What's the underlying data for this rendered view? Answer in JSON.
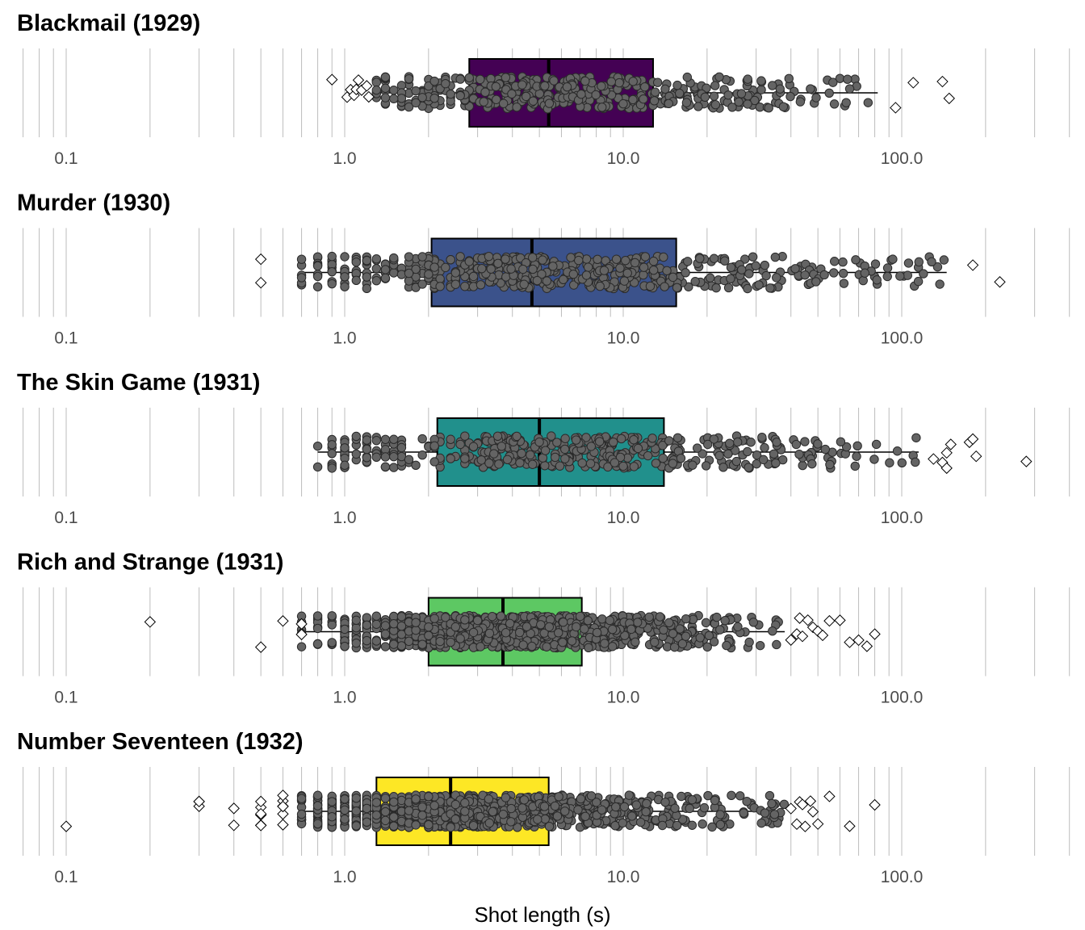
{
  "chart_data": {
    "type": "boxplot",
    "x_scale": "log10",
    "xlim": [
      0.07,
      420
    ],
    "x_ticks": [
      0.1,
      1.0,
      10.0,
      100.0
    ],
    "x_tick_labels": [
      "0.1",
      "1.0",
      "10.0",
      "100.0"
    ],
    "xlabel": "Shot length (s)",
    "grid": "vertical log minor gridlines",
    "point_color": "#646464",
    "panels": [
      {
        "title": "Blackmail (1929)",
        "fill": "#440154",
        "q1": 2.8,
        "median": 5.4,
        "q3": 12.8,
        "whisker_low": 1.3,
        "whisker_high": 82,
        "point_range": [
          1.3,
          82
        ],
        "n_points": 430,
        "outliers": [
          0.9,
          1.02,
          1.05,
          1.08,
          1.1,
          1.12,
          1.15,
          1.2,
          1.22,
          95,
          110,
          140,
          148
        ]
      },
      {
        "title": "Murder (1930)",
        "fill": "#3b528b",
        "q1": 2.05,
        "median": 4.7,
        "q3": 15.5,
        "whisker_low": 0.7,
        "whisker_high": 145,
        "point_range": [
          0.7,
          145
        ],
        "n_points": 520,
        "outliers": [
          0.5,
          0.5,
          180,
          225
        ]
      },
      {
        "title": "The Skin Game (1931)",
        "fill": "#21908c",
        "q1": 2.15,
        "median": 5.0,
        "q3": 14.0,
        "whisker_low": 0.8,
        "whisker_high": 115,
        "point_range": [
          0.8,
          115
        ],
        "n_points": 420,
        "outliers": [
          130,
          140,
          145,
          145,
          150,
          175,
          180,
          185,
          280
        ]
      },
      {
        "title": "Rich and Strange (1931)",
        "fill": "#5dc863",
        "q1": 2.0,
        "median": 3.7,
        "q3": 7.1,
        "whisker_low": 0.7,
        "whisker_high": 38,
        "point_range": [
          0.7,
          38
        ],
        "n_points": 950,
        "outliers": [
          0.2,
          0.5,
          0.6,
          0.7,
          0.7,
          40,
          42,
          43,
          44,
          46,
          48,
          50,
          52,
          55,
          60,
          65,
          70,
          75,
          80
        ]
      },
      {
        "title": "Number Seventeen (1932)",
        "fill": "#fde725",
        "q1": 1.3,
        "median": 2.4,
        "q3": 5.4,
        "whisker_low": 0.7,
        "whisker_high": 38,
        "point_range": [
          0.7,
          38
        ],
        "n_points": 1000,
        "outliers": [
          0.1,
          0.3,
          0.3,
          0.3,
          0.4,
          0.4,
          0.5,
          0.5,
          0.5,
          0.5,
          0.5,
          0.5,
          0.6,
          0.6,
          0.6,
          0.6,
          0.6,
          0.6,
          40,
          42,
          43,
          44,
          45,
          47,
          48,
          50,
          55,
          65,
          80
        ]
      }
    ]
  }
}
